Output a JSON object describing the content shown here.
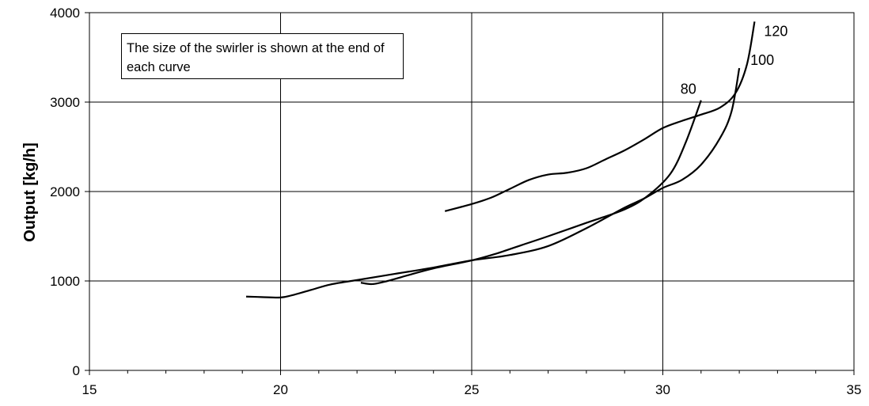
{
  "chart_data": {
    "type": "line",
    "title": "",
    "xlabel": "",
    "ylabel": "Output [kg/h]",
    "xlim": [
      15,
      35
    ],
    "ylim": [
      0,
      4000
    ],
    "x_ticks": [
      15,
      20,
      25,
      30,
      35
    ],
    "y_ticks": [
      0,
      1000,
      2000,
      3000,
      4000
    ],
    "grid": "major",
    "annotation": "The size of the swirler is shown at the end of each curve",
    "series": [
      {
        "name": "80",
        "points": [
          [
            22.1,
            980
          ],
          [
            22.4,
            965
          ],
          [
            22.8,
            1000
          ],
          [
            23.3,
            1060
          ],
          [
            24,
            1140
          ],
          [
            25,
            1230
          ],
          [
            25.6,
            1300
          ],
          [
            26.3,
            1400
          ],
          [
            27,
            1500
          ],
          [
            28,
            1650
          ],
          [
            29,
            1800
          ],
          [
            29.6,
            1950
          ],
          [
            30.2,
            2200
          ],
          [
            30.6,
            2550
          ],
          [
            31,
            3020
          ]
        ]
      },
      {
        "name": "100",
        "points": [
          [
            19.1,
            825
          ],
          [
            19.5,
            820
          ],
          [
            20,
            815
          ],
          [
            20.3,
            840
          ],
          [
            20.8,
            900
          ],
          [
            21.3,
            960
          ],
          [
            22,
            1010
          ],
          [
            23,
            1080
          ],
          [
            24,
            1150
          ],
          [
            25,
            1230
          ],
          [
            26,
            1290
          ],
          [
            27,
            1390
          ],
          [
            28,
            1590
          ],
          [
            29,
            1820
          ],
          [
            29.5,
            1920
          ],
          [
            30,
            2040
          ],
          [
            30.5,
            2130
          ],
          [
            31,
            2300
          ],
          [
            31.5,
            2600
          ],
          [
            31.8,
            2900
          ],
          [
            32,
            3380
          ]
        ]
      },
      {
        "name": "120",
        "points": [
          [
            24.3,
            1780
          ],
          [
            25,
            1860
          ],
          [
            25.5,
            1930
          ],
          [
            26,
            2030
          ],
          [
            26.5,
            2130
          ],
          [
            27,
            2190
          ],
          [
            27.5,
            2210
          ],
          [
            28,
            2260
          ],
          [
            28.5,
            2360
          ],
          [
            29,
            2460
          ],
          [
            29.5,
            2580
          ],
          [
            30,
            2710
          ],
          [
            30.5,
            2790
          ],
          [
            31,
            2860
          ],
          [
            31.5,
            2940
          ],
          [
            31.9,
            3100
          ],
          [
            32.2,
            3420
          ],
          [
            32.4,
            3900
          ]
        ]
      }
    ]
  }
}
